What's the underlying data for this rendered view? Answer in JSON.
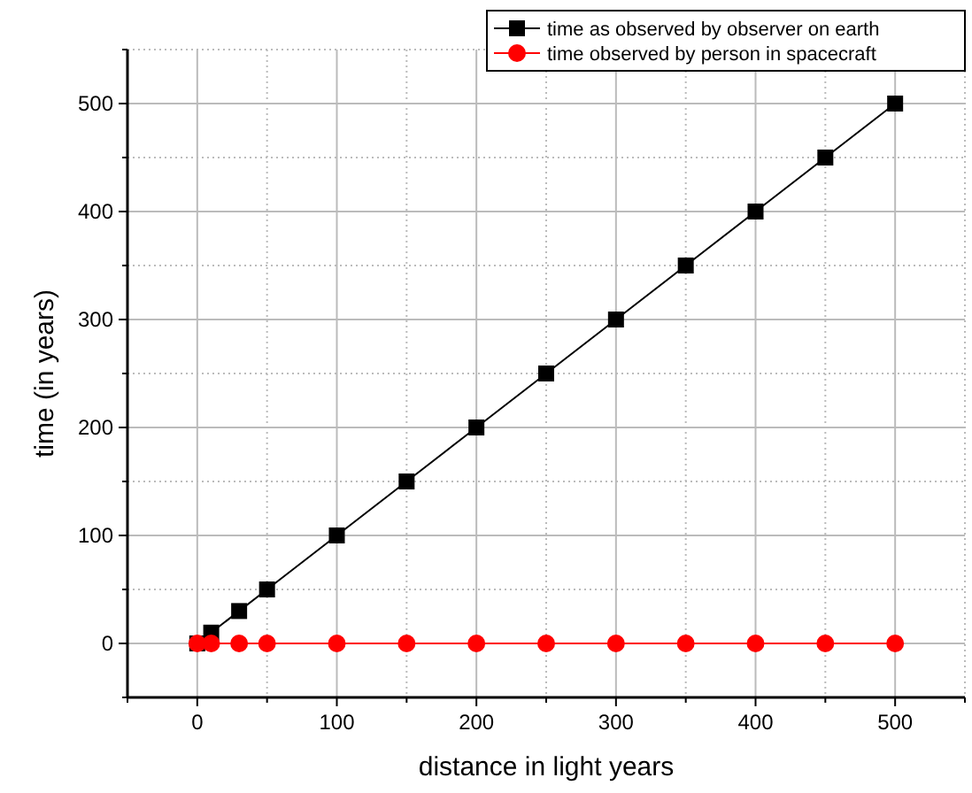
{
  "chart_data": {
    "type": "line",
    "xlabel": "distance in light years",
    "ylabel": "time (in years)",
    "x": [
      0,
      10,
      30,
      50,
      100,
      150,
      200,
      250,
      300,
      350,
      400,
      450,
      500
    ],
    "series": [
      {
        "name": "time as observed by observer on earth",
        "color": "#000000",
        "marker": "square",
        "values": [
          0,
          10,
          30,
          50,
          100,
          150,
          200,
          250,
          300,
          350,
          400,
          450,
          500
        ]
      },
      {
        "name": "time observed by person in spacecraft",
        "color": "#ff0000",
        "marker": "circle",
        "values": [
          0,
          0,
          0,
          0,
          0,
          0,
          0,
          0,
          0,
          0,
          0,
          0,
          0
        ]
      }
    ],
    "xlim": [
      -50,
      550
    ],
    "ylim": [
      -50,
      550
    ],
    "xticks": [
      {
        "value": -50,
        "label": null
      },
      0,
      {
        "value": 50,
        "label": null
      },
      100,
      {
        "value": 150,
        "label": null
      },
      200,
      {
        "value": 250,
        "label": null
      },
      300,
      {
        "value": 350,
        "label": null
      },
      400,
      {
        "value": 450,
        "label": null
      },
      500,
      {
        "value": 550,
        "label": null
      }
    ],
    "yticks": [
      {
        "value": -50,
        "label": null
      },
      0,
      {
        "value": 50,
        "label": null
      },
      100,
      {
        "value": 150,
        "label": null
      },
      200,
      {
        "value": 250,
        "label": null
      },
      300,
      {
        "value": 350,
        "label": null
      },
      400,
      {
        "value": 450,
        "label": null
      },
      500,
      {
        "value": 550,
        "label": null
      }
    ],
    "grid": true,
    "legend": "top right",
    "line_style": "solid"
  }
}
